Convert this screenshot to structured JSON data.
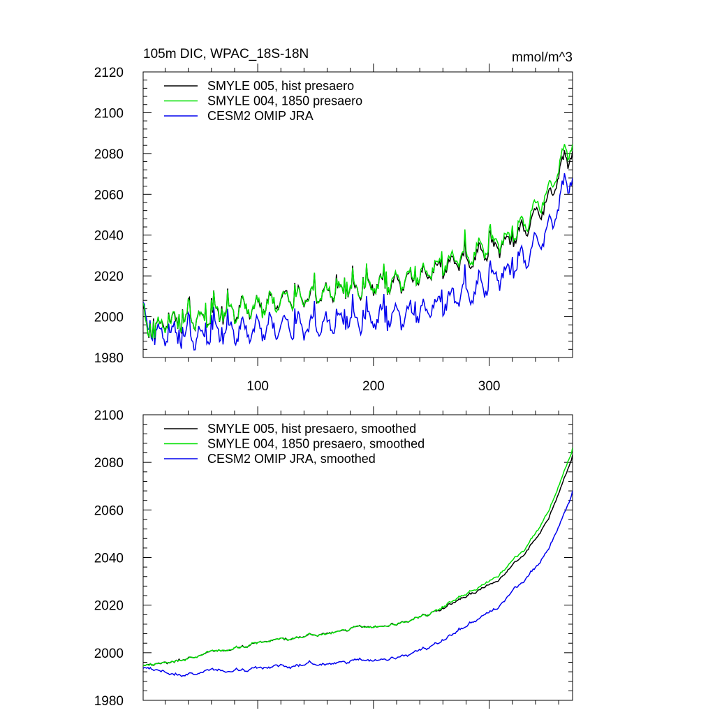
{
  "header": {
    "left_title": "105m DIC, WPAC_18S-18N",
    "units": "mmol/m^3"
  },
  "colors": {
    "smyle005": "#000000",
    "smyle004": "#00e000",
    "omip": "#0000ee"
  },
  "chart_data": [
    {
      "type": "line",
      "title": "105m DIC, WPAC_18S-18N",
      "xlabel": "",
      "ylabel": "",
      "xlim": [
        1,
        372
      ],
      "ylim": [
        1980,
        2120
      ],
      "x_ticks": [
        100,
        200,
        300
      ],
      "y_ticks": [
        1980,
        2000,
        2020,
        2040,
        2060,
        2080,
        2100,
        2120
      ],
      "legend_position": "top-left",
      "grid": false,
      "n_points": 372,
      "series": [
        {
          "name": "SMYLE 005, hist presaero",
          "color_key": "smyle005",
          "anchors": [
            [
              1,
              2005
            ],
            [
              3,
              1993
            ],
            [
              6,
              1990
            ],
            [
              10,
              1994
            ],
            [
              20,
              1996
            ],
            [
              40,
              1998
            ],
            [
              60,
              2000
            ],
            [
              80,
              2003
            ],
            [
              100,
              2005
            ],
            [
              120,
              2008
            ],
            [
              140,
              2010
            ],
            [
              160,
              2012
            ],
            [
              180,
              2013
            ],
            [
              200,
              2015
            ],
            [
              220,
              2016
            ],
            [
              240,
              2020
            ],
            [
              260,
              2025
            ],
            [
              280,
              2028
            ],
            [
              300,
              2033
            ],
            [
              320,
              2038
            ],
            [
              340,
              2048
            ],
            [
              350,
              2056
            ],
            [
              360,
              2070
            ],
            [
              365,
              2078
            ],
            [
              372,
              2080
            ]
          ],
          "seasonal_amplitude": 4,
          "noise": 2.5
        },
        {
          "name": "SMYLE 004, 1850 presaero",
          "color_key": "smyle004",
          "anchors": [
            [
              1,
              2005
            ],
            [
              3,
              1993
            ],
            [
              6,
              1990
            ],
            [
              10,
              1994
            ],
            [
              20,
              1996
            ],
            [
              40,
              1998
            ],
            [
              60,
              2000
            ],
            [
              80,
              2003
            ],
            [
              100,
              2005
            ],
            [
              120,
              2008
            ],
            [
              140,
              2010
            ],
            [
              160,
              2012
            ],
            [
              180,
              2013
            ],
            [
              200,
              2015
            ],
            [
              220,
              2017
            ],
            [
              240,
              2021
            ],
            [
              260,
              2026
            ],
            [
              280,
              2030
            ],
            [
              300,
              2035
            ],
            [
              320,
              2040
            ],
            [
              340,
              2052
            ],
            [
              350,
              2060
            ],
            [
              360,
              2073
            ],
            [
              365,
              2082
            ],
            [
              372,
              2083
            ]
          ],
          "seasonal_amplitude": 4,
          "noise": 2.5
        },
        {
          "name": "CESM2 OMIP JRA",
          "color_key": "omip",
          "anchors": [
            [
              1,
              2005
            ],
            [
              3,
              1995
            ],
            [
              8,
              1992
            ],
            [
              20,
              1990
            ],
            [
              40,
              1990
            ],
            [
              60,
              1991
            ],
            [
              80,
              1993
            ],
            [
              100,
              1994
            ],
            [
              120,
              1995
            ],
            [
              140,
              1996
            ],
            [
              160,
              1996
            ],
            [
              180,
              1998
            ],
            [
              200,
              1999
            ],
            [
              220,
              2000
            ],
            [
              240,
              2003
            ],
            [
              260,
              2007
            ],
            [
              280,
              2012
            ],
            [
              300,
              2017
            ],
            [
              320,
              2024
            ],
            [
              340,
              2034
            ],
            [
              350,
              2042
            ],
            [
              360,
              2055
            ],
            [
              365,
              2066
            ],
            [
              372,
              2068
            ]
          ],
          "seasonal_amplitude": 5,
          "noise": 3.0
        }
      ]
    },
    {
      "type": "line",
      "title": "",
      "xlabel": "",
      "ylabel": "",
      "xlim": [
        1,
        372
      ],
      "ylim": [
        1980,
        2100
      ],
      "x_ticks": [
        100,
        200,
        300
      ],
      "show_x_tick_labels": false,
      "y_ticks": [
        1980,
        2000,
        2020,
        2040,
        2060,
        2080,
        2100
      ],
      "legend_position": "top-left",
      "grid": false,
      "n_points": 360,
      "series": [
        {
          "name": "SMYLE 005, hist presaero, smoothed",
          "color_key": "smyle005",
          "anchors": [
            [
              1,
              1995
            ],
            [
              10,
              1995
            ],
            [
              30,
              1997
            ],
            [
              60,
              2000
            ],
            [
              100,
              2004
            ],
            [
              140,
              2007
            ],
            [
              180,
              2010
            ],
            [
              220,
              2013
            ],
            [
              240,
              2016
            ],
            [
              260,
              2021
            ],
            [
              280,
              2026
            ],
            [
              300,
              2032
            ],
            [
              320,
              2041
            ],
            [
              340,
              2056
            ],
            [
              355,
              2075
            ],
            [
              362,
              2086
            ]
          ],
          "noise": 1.0
        },
        {
          "name": "SMYLE 004, 1850 presaero, smoothed",
          "color_key": "smyle004",
          "anchors": [
            [
              1,
              1995
            ],
            [
              10,
              1995
            ],
            [
              30,
              1997
            ],
            [
              60,
              2000
            ],
            [
              100,
              2004
            ],
            [
              140,
              2007
            ],
            [
              180,
              2010
            ],
            [
              220,
              2013
            ],
            [
              240,
              2016
            ],
            [
              260,
              2022
            ],
            [
              280,
              2027
            ],
            [
              300,
              2034
            ],
            [
              320,
              2043
            ],
            [
              340,
              2059
            ],
            [
              355,
              2078
            ],
            [
              362,
              2089
            ]
          ],
          "noise": 1.0
        },
        {
          "name": "CESM2 OMIP JRA, smoothed",
          "color_key": "omip",
          "anchors": [
            [
              1,
              1994
            ],
            [
              10,
              1993
            ],
            [
              30,
              1991
            ],
            [
              60,
              1992
            ],
            [
              100,
              1993
            ],
            [
              140,
              1995
            ],
            [
              180,
              1996
            ],
            [
              220,
              1999
            ],
            [
              240,
              2002
            ],
            [
              260,
              2008
            ],
            [
              280,
              2014
            ],
            [
              300,
              2021
            ],
            [
              320,
              2030
            ],
            [
              340,
              2043
            ],
            [
              355,
              2060
            ],
            [
              362,
              2071
            ]
          ],
          "noise": 1.2
        }
      ]
    }
  ]
}
